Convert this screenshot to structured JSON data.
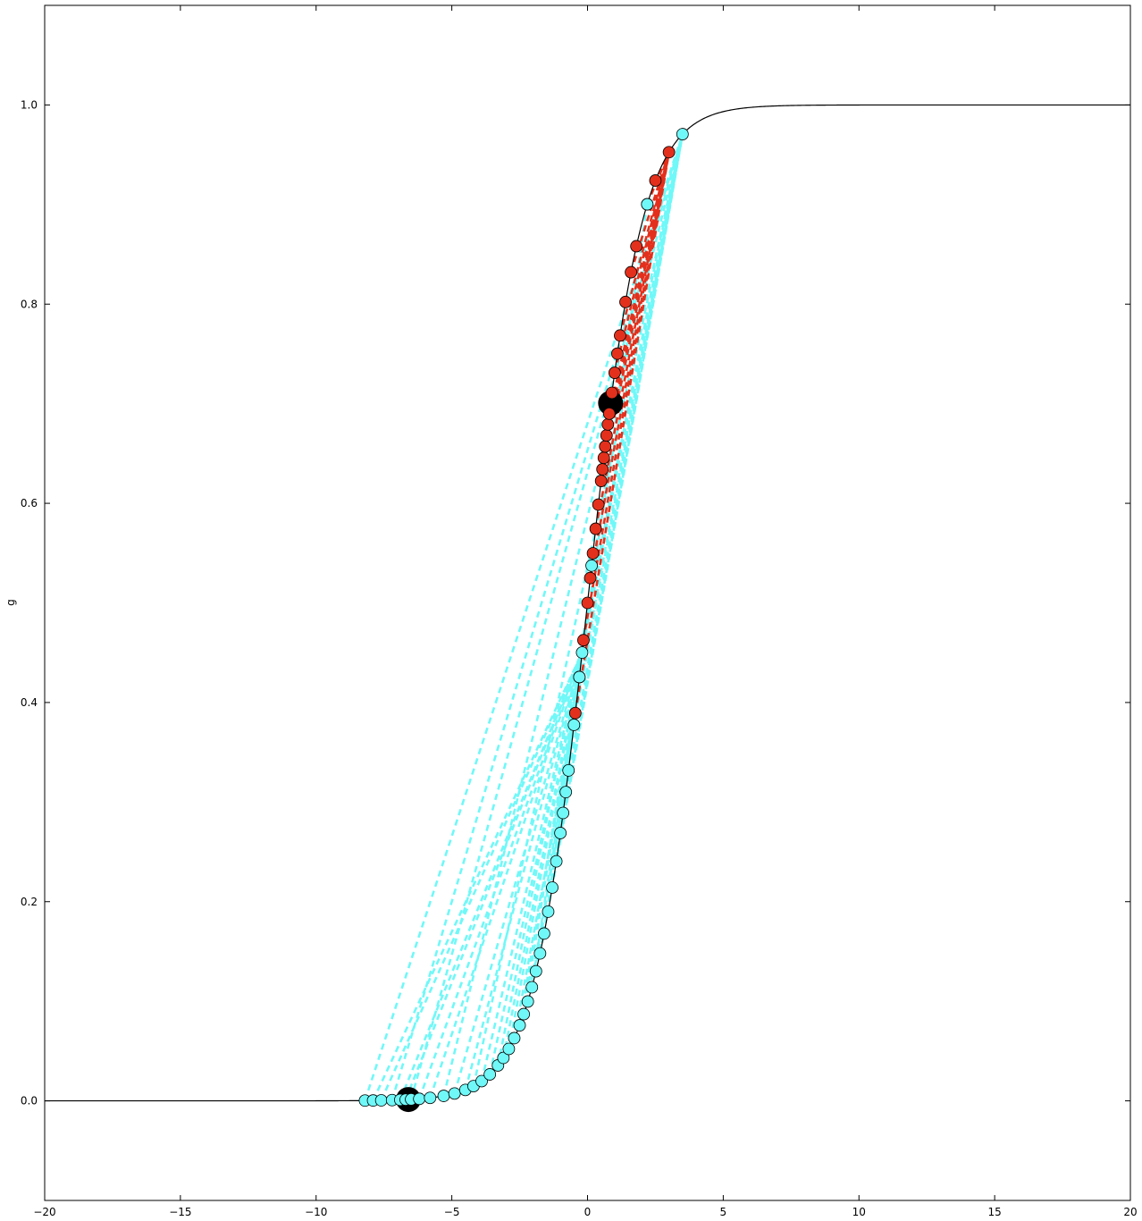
{
  "chart_data": {
    "type": "scatter",
    "title": "",
    "xlabel": "",
    "ylabel": "g",
    "xlim": [
      -20,
      20
    ],
    "ylim": [
      -0.1,
      1.1
    ],
    "x_ticks": [
      -20,
      -15,
      -10,
      -5,
      0,
      5,
      10,
      15,
      20
    ],
    "x_tick_labels": [
      "−20",
      "−15",
      "−10",
      "−5",
      "0",
      "5",
      "10",
      "15",
      "20"
    ],
    "y_ticks": [
      0.0,
      0.2,
      0.4,
      0.6,
      0.8,
      1.0
    ],
    "y_tick_labels": [
      "0.0",
      "0.2",
      "0.4",
      "0.6",
      "0.8",
      "1.0"
    ],
    "grid": false,
    "legend": "none",
    "curve": {
      "kind": "sigmoid",
      "center": 0.0,
      "steepness": 1.0,
      "x_range": [
        -20,
        20
      ],
      "color": "#000000"
    },
    "cyan_x": [
      -8.2,
      -7.9,
      -7.6,
      -7.2,
      -6.9,
      -6.7,
      -6.5,
      -6.2,
      -5.8,
      -5.3,
      -4.9,
      -4.5,
      -4.2,
      -3.9,
      -3.6,
      -3.3,
      -3.1,
      -2.9,
      -2.7,
      -2.5,
      -2.35,
      -2.2,
      -2.05,
      -1.9,
      -1.75,
      -1.6,
      -1.45,
      -1.3,
      -1.15,
      -1.0,
      -0.9,
      -0.8,
      -0.7,
      -0.5,
      -0.3,
      -0.2,
      0.15,
      2.2,
      3.5
    ],
    "red_x": [
      -0.45,
      -0.3,
      -0.15,
      0.0,
      0.1,
      0.2,
      0.3,
      0.4,
      0.5,
      0.55,
      0.6,
      0.65,
      0.7,
      0.75,
      0.8,
      0.9,
      1.0,
      1.1,
      1.2,
      1.4,
      1.6,
      1.8,
      2.2,
      2.5,
      3.0
    ],
    "big_black_x": [
      -6.6,
      0.85
    ],
    "colors": {
      "cyan": "#70f8f8",
      "red": "#e3301c",
      "curve": "#000000",
      "marker_edge": "#000000"
    }
  }
}
